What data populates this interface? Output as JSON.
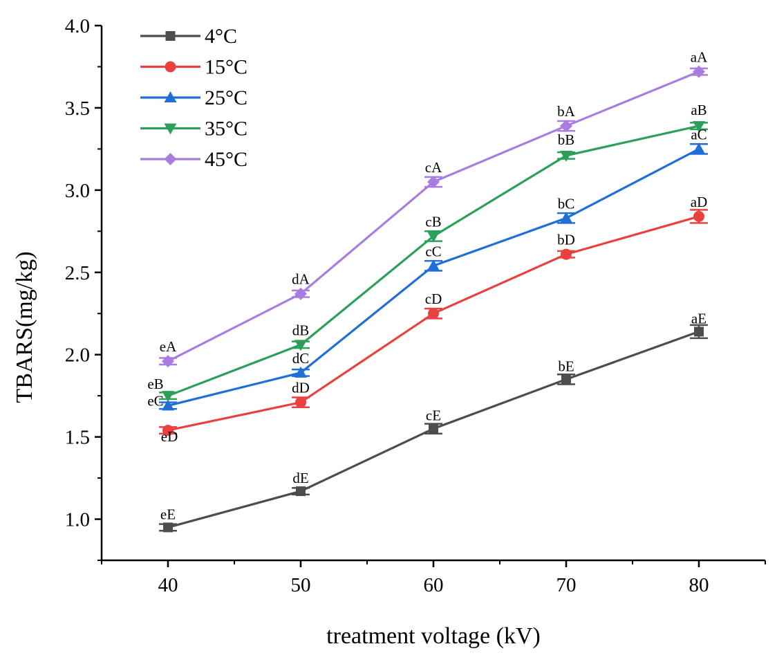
{
  "chart_data": {
    "type": "line",
    "title": "",
    "xlabel": "treatment voltage (kV)",
    "ylabel": "TBARS(mg/kg)",
    "x": [
      40,
      50,
      60,
      70,
      80
    ],
    "xlim": [
      35,
      85
    ],
    "ylim": [
      0.75,
      4.0
    ],
    "xticks": [
      "40",
      "50",
      "60",
      "70",
      "80"
    ],
    "yticks": [
      "1.0",
      "1.5",
      "2.0",
      "2.5",
      "3.0",
      "3.5",
      "4.0"
    ],
    "legend_position": "top-left",
    "series": [
      {
        "name": "4°C",
        "color": "#4d4d4d",
        "marker": "square",
        "values": [
          0.95,
          1.17,
          1.55,
          1.85,
          2.14
        ],
        "errors": [
          0.02,
          0.02,
          0.03,
          0.03,
          0.04
        ],
        "labels": [
          "eE",
          "dE",
          "cE",
          "bE",
          "aE"
        ]
      },
      {
        "name": "15°C",
        "color": "#e8413f",
        "marker": "circle",
        "values": [
          1.54,
          1.71,
          2.25,
          2.61,
          2.84
        ],
        "errors": [
          0.02,
          0.03,
          0.03,
          0.02,
          0.04
        ],
        "labels": [
          "eD",
          "dD",
          "cD",
          "bD",
          "aD"
        ]
      },
      {
        "name": "25°C",
        "color": "#1f6fd6",
        "marker": "triangle-up",
        "values": [
          1.69,
          1.89,
          2.54,
          2.83,
          3.25
        ],
        "errors": [
          0.02,
          0.02,
          0.03,
          0.03,
          0.03
        ],
        "labels": [
          "eC",
          "dC",
          "cC",
          "bC",
          "aC"
        ]
      },
      {
        "name": "35°C",
        "color": "#2ca05a",
        "marker": "triangle-down",
        "values": [
          1.75,
          2.06,
          2.72,
          3.21,
          3.39
        ],
        "errors": [
          0.02,
          0.02,
          0.03,
          0.02,
          0.02
        ],
        "labels": [
          "eB",
          "dB",
          "cB",
          "bB",
          "aB"
        ]
      },
      {
        "name": "45°C",
        "color": "#a97de0",
        "marker": "diamond",
        "values": [
          1.96,
          2.37,
          3.05,
          3.39,
          3.72
        ],
        "errors": [
          0.02,
          0.02,
          0.03,
          0.03,
          0.02
        ],
        "labels": [
          "eA",
          "dA",
          "cA",
          "bA",
          "aA"
        ]
      }
    ]
  }
}
